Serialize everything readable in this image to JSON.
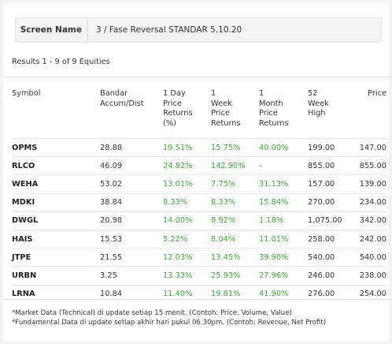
{
  "screen": {
    "label": "Screen Name",
    "value": "3 / Fase Reversal STANDAR 5.10.20"
  },
  "results_text": "Results 1 - 9 of 9 Equities",
  "table": {
    "headers": [
      "Symbol",
      "Bandar\nAccum/Dist",
      "1 Day\nPrice\nReturns\n(%)",
      "1\nWeek\nPrice\nReturns",
      "1\nMonth\nPrice\nReturns",
      "52\nWeek\nHigh",
      "Price"
    ],
    "rows": [
      [
        "OPMS",
        "28.88",
        "19.51%",
        "15.75%",
        "40.00%",
        "199.00",
        "147.00"
      ],
      [
        "RLCO",
        "46.09",
        "24.82%",
        "142.90%",
        "-",
        "855.00",
        "855.00"
      ],
      [
        "WEHA",
        "53.02",
        "13.01%",
        "7.75%",
        "31.13%",
        "157.00",
        "139.00"
      ],
      [
        "MDKI",
        "38.84",
        "8.33%",
        "8.33%",
        "15.84%",
        "270.00",
        "234.00"
      ],
      [
        "DWGL",
        "20.98",
        "14.00%",
        "8.92%",
        "1.18%",
        "1,075.00",
        "342.00"
      ],
      [
        "HAIS",
        "15.53",
        "5.22%",
        "8.04%",
        "11.01%",
        "258.00",
        "242.00"
      ],
      [
        "JTPE",
        "21.55",
        "12.03%",
        "13.45%",
        "39.90%",
        "540.00",
        "540.00"
      ],
      [
        "URBN",
        "3.25",
        "13.33%",
        "25.93%",
        "27.96%",
        "246.00",
        "238.00"
      ],
      [
        "LRNA",
        "10.84",
        "11.40%",
        "19.81%",
        "41.90%",
        "276.00",
        "254.00"
      ]
    ]
  },
  "colors": {
    "positive": "#3aa935"
  },
  "footnotes": [
    "*Market Data (Technical) di update setiap 15 menit. (Contoh: Price, Volume, Value)",
    "*Fundamental Data di update setiap akhir hari pukul 06.30pm. (Contoh: Revenue, Net Profit)"
  ]
}
